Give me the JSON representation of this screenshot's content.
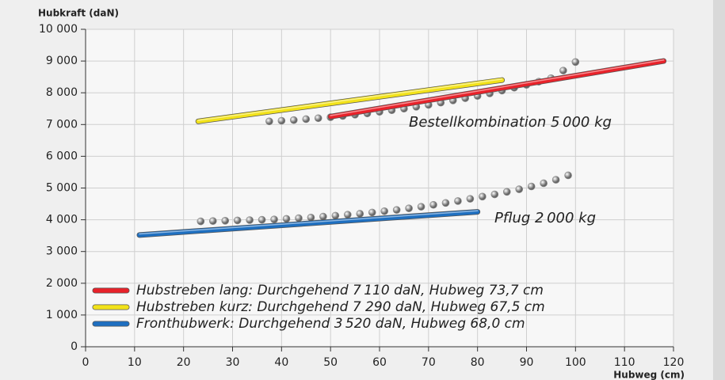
{
  "chart_data": {
    "type": "line",
    "y_label": "Hubkraft (daN)",
    "x_label": "Hubweg (cm)",
    "annotations": [
      "Bestellkombination 5 000 kg",
      "Pflug 2 000 kg"
    ],
    "xlim": [
      0,
      120
    ],
    "xticks": [
      0,
      10,
      20,
      30,
      40,
      50,
      60,
      70,
      80,
      90,
      100,
      110,
      120
    ],
    "ylim": [
      0,
      10000
    ],
    "yticks": [
      0,
      {
        "value": 1000,
        "label": "1 000"
      },
      {
        "value": 2000,
        "label": "2 000"
      },
      {
        "value": 3000,
        "label": "3 000"
      },
      {
        "value": 4000,
        "label": "4 000"
      },
      {
        "value": 5000,
        "label": "5 000"
      },
      {
        "value": 6000,
        "label": "6 000"
      },
      {
        "value": 7000,
        "label": "7 000"
      },
      {
        "value": 8000,
        "label": "8 000"
      },
      {
        "value": 9000,
        "label": "9 000"
      },
      {
        "value": 10000,
        "label": "10 000"
      }
    ],
    "grid": true,
    "legend": "lower left",
    "series": [
      {
        "marker": "dots",
        "color": "#8a8a8a",
        "x": [
          37.5,
          40,
          42.5,
          45,
          47.5,
          50,
          52.5,
          55,
          57.5,
          60,
          62.5,
          65,
          67.5,
          70,
          72.5,
          75,
          77.5,
          80,
          82.5,
          85,
          87.5,
          90,
          92.5,
          95,
          97.5,
          100
        ],
        "values": [
          7100,
          7120,
          7140,
          7170,
          7200,
          7230,
          7270,
          7310,
          7350,
          7400,
          7450,
          7500,
          7560,
          7620,
          7690,
          7760,
          7830,
          7900,
          7980,
          8070,
          8160,
          8250,
          8350,
          8460,
          8700,
          8970
        ]
      },
      {
        "marker": "dots",
        "color": "#8a8a8a",
        "x": [
          23.5,
          26,
          28.5,
          31,
          33.5,
          36,
          38.5,
          41,
          43.5,
          46,
          48.5,
          51,
          53.5,
          56,
          58.5,
          61,
          63.5,
          66,
          68.5,
          71,
          73.5,
          76,
          78.5,
          81,
          83.5,
          86,
          88.5,
          91,
          93.5,
          96,
          98.5
        ],
        "values": [
          3950,
          3960,
          3970,
          3980,
          3990,
          4000,
          4010,
          4030,
          4050,
          4070,
          4100,
          4130,
          4160,
          4190,
          4230,
          4270,
          4310,
          4360,
          4410,
          4470,
          4530,
          4590,
          4660,
          4730,
          4800,
          4880,
          4960,
          5050,
          5150,
          5260,
          5400
        ]
      },
      {
        "name": "Hubstreben lang: Durchgehend 7 110 daN, Hubweg 73,7 cm",
        "marker": "line",
        "color": "#e8222a",
        "x": [
          50,
          118
        ],
        "values": [
          7250,
          9000
        ]
      },
      {
        "name": "Hubstreben kurz: Durchgehend 7 290 daN, Hubweg 67,5 cm",
        "marker": "line",
        "color": "#f2e21a",
        "x": [
          23,
          85
        ],
        "values": [
          7100,
          8400
        ]
      },
      {
        "name": "Fronthubwerk: Durchgehend 3 520 daN, Hubweg 68,0 cm",
        "marker": "line",
        "color": "#1e6fc0",
        "x": [
          11,
          80
        ],
        "values": [
          3520,
          4250
        ]
      }
    ]
  }
}
